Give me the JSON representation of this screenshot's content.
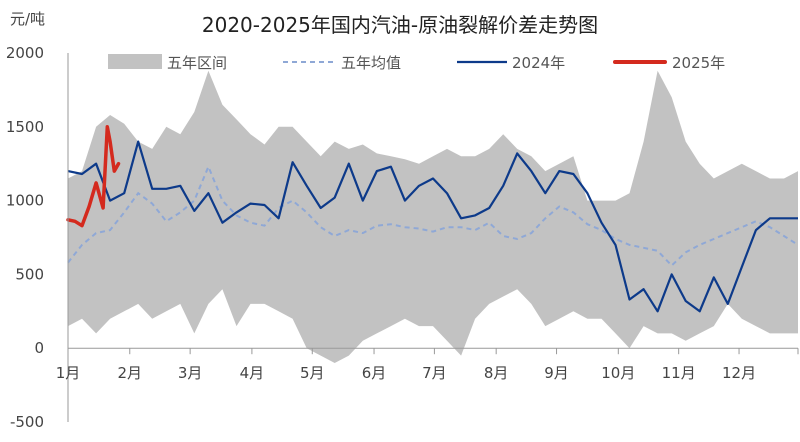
{
  "chart_data": {
    "type": "line",
    "title": "2020-2025年国内汽油-原油裂解价差走势图",
    "ylabel": "元/吨",
    "xlabel": "",
    "ylim": [
      -500,
      2000
    ],
    "yticks": [
      "2000",
      "1500",
      "1000",
      "500",
      "0",
      "-500"
    ],
    "ytick_values": [
      2000,
      1500,
      1000,
      500,
      0,
      -500
    ],
    "x_domain_weeks": [
      0,
      52
    ],
    "xticks": [
      "1月",
      "2月",
      "3月",
      "4月",
      "5月",
      "6月",
      "7月",
      "8月",
      "9月",
      "10月",
      "11月",
      "12月"
    ],
    "xtick_weeks": [
      0,
      4.4,
      8.7,
      13.1,
      17.4,
      21.8,
      26.1,
      30.5,
      34.8,
      39.2,
      43.5,
      47.8
    ],
    "legend_position": "top",
    "grid": false,
    "series": [
      {
        "name": "五年区间",
        "kind": "band",
        "color": "#c2c2c2",
        "x": [
          0,
          1,
          2,
          3,
          4,
          5,
          6,
          7,
          8,
          9,
          10,
          11,
          12,
          13,
          14,
          15,
          16,
          17,
          18,
          19,
          20,
          21,
          22,
          23,
          24,
          25,
          26,
          27,
          28,
          29,
          30,
          31,
          32,
          33,
          34,
          35,
          36,
          37,
          38,
          39,
          40,
          41,
          42,
          43,
          44,
          45,
          46,
          47,
          48,
          49,
          50,
          51,
          52
        ],
        "high": [
          1150,
          1200,
          1500,
          1580,
          1520,
          1400,
          1350,
          1500,
          1450,
          1600,
          1880,
          1650,
          1550,
          1450,
          1380,
          1500,
          1500,
          1400,
          1300,
          1400,
          1350,
          1380,
          1320,
          1300,
          1280,
          1250,
          1300,
          1350,
          1300,
          1300,
          1350,
          1450,
          1350,
          1300,
          1200,
          1250,
          1300,
          1000,
          1000,
          1000,
          1050,
          1400,
          1880,
          1700,
          1400,
          1250,
          1150,
          1200,
          1250,
          1200,
          1150,
          1150,
          1200
        ],
        "low": [
          150,
          200,
          100,
          200,
          250,
          300,
          200,
          250,
          300,
          100,
          300,
          400,
          150,
          300,
          300,
          250,
          200,
          0,
          -50,
          -100,
          -50,
          50,
          100,
          150,
          200,
          150,
          150,
          50,
          -50,
          200,
          300,
          350,
          400,
          300,
          150,
          200,
          250,
          200,
          200,
          100,
          0,
          150,
          100,
          100,
          50,
          100,
          150,
          300,
          200,
          150,
          100,
          100,
          100
        ]
      },
      {
        "name": "五年均值",
        "kind": "dashed",
        "color": "#8fa8d6",
        "x": [
          0,
          1,
          2,
          3,
          4,
          5,
          6,
          7,
          8,
          9,
          10,
          11,
          12,
          13,
          14,
          15,
          16,
          17,
          18,
          19,
          20,
          21,
          22,
          23,
          24,
          25,
          26,
          27,
          28,
          29,
          30,
          31,
          32,
          33,
          34,
          35,
          36,
          37,
          38,
          39,
          40,
          41,
          42,
          43,
          44,
          45,
          46,
          47,
          48,
          49,
          50,
          51,
          52
        ],
        "values": [
          580,
          700,
          780,
          800,
          920,
          1050,
          980,
          860,
          920,
          1000,
          1230,
          1000,
          900,
          850,
          830,
          950,
          1000,
          920,
          820,
          760,
          800,
          780,
          830,
          840,
          820,
          810,
          790,
          820,
          820,
          800,
          850,
          760,
          740,
          780,
          880,
          960,
          920,
          840,
          800,
          740,
          700,
          680,
          660,
          560,
          650,
          700,
          740,
          780,
          820,
          860,
          820,
          760,
          700
        ]
      },
      {
        "name": "2024年",
        "kind": "line",
        "color": "#0d3a8a",
        "x": [
          0,
          1,
          2,
          3,
          4,
          5,
          6,
          7,
          8,
          9,
          10,
          11,
          12,
          13,
          14,
          15,
          16,
          17,
          18,
          19,
          20,
          21,
          22,
          23,
          24,
          25,
          26,
          27,
          28,
          29,
          30,
          31,
          32,
          33,
          34,
          35,
          36,
          37,
          38,
          39,
          40,
          41,
          42,
          43,
          44,
          45,
          46,
          47,
          48,
          49,
          50,
          51,
          52
        ],
        "values": [
          1200,
          1180,
          1250,
          1000,
          1050,
          1400,
          1080,
          1080,
          1100,
          930,
          1050,
          850,
          920,
          980,
          970,
          880,
          1260,
          1100,
          950,
          1020,
          1250,
          1000,
          1200,
          1230,
          1000,
          1100,
          1150,
          1050,
          880,
          900,
          950,
          1100,
          1320,
          1200,
          1050,
          1200,
          1180,
          1050,
          850,
          700,
          330,
          400,
          250,
          500,
          320,
          250,
          480,
          300,
          550,
          800,
          880,
          880,
          880
        ]
      },
      {
        "name": "2025年",
        "kind": "thick",
        "color": "#d42a1e",
        "x": [
          0,
          0.5,
          1,
          1.5,
          2,
          2.5,
          2.8,
          3.0,
          3.3,
          3.6
        ],
        "values": [
          870,
          860,
          830,
          960,
          1120,
          950,
          1500,
          1400,
          1200,
          1250
        ]
      }
    ]
  }
}
